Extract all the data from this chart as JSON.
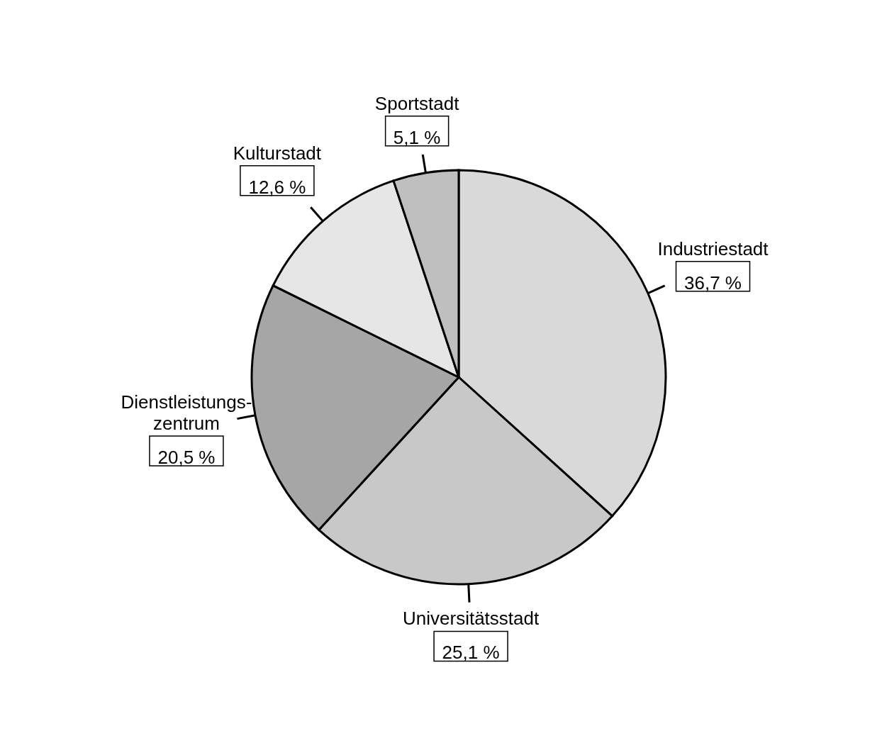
{
  "chart_data": {
    "type": "pie",
    "categories": [
      "Industriestadt",
      "Universitätsstadt",
      "Dienstleistungs-\nzentrum",
      "Kulturstadt",
      "Sportstadt"
    ],
    "values": [
      36.7,
      25.1,
      20.5,
      12.6,
      5.1
    ],
    "value_labels": [
      "36,7 %",
      "25,1 %",
      "20,5 %",
      "12,6 %",
      "5,1 %"
    ],
    "colors": [
      "#d9d9d9",
      "#c8c8c8",
      "#a6a6a6",
      "#e6e6e6",
      "#bfbfbf"
    ]
  }
}
